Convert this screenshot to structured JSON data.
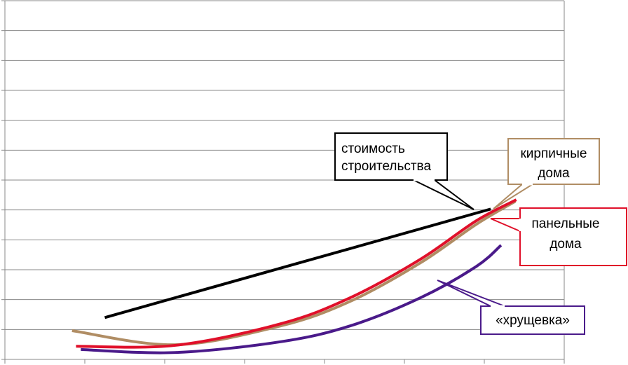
{
  "chart_data": {
    "type": "line",
    "xlim": [
      0,
      7
    ],
    "xticks": [
      0,
      1,
      2,
      3,
      4,
      5,
      6,
      7
    ],
    "ylim": [
      0,
      12
    ],
    "yticks": [
      0,
      1,
      2,
      3,
      4,
      5,
      6,
      7,
      8,
      9,
      10,
      11,
      12
    ],
    "grid": true,
    "series": [
      {
        "name": "стоимость строительства",
        "color": "#000000",
        "x": [
          1.25,
          6.08
        ],
        "values": [
          1.4,
          5.03
        ]
      },
      {
        "name": "кирпичные дома",
        "color": "#b08d64",
        "x": [
          0.84,
          2.13,
          3.45,
          4.32,
          5.2,
          5.9,
          6.39
        ],
        "values": [
          0.96,
          0.49,
          1.12,
          1.94,
          3.23,
          4.52,
          5.29
        ]
      },
      {
        "name": "панельные дома",
        "color": "#e0102a",
        "x": [
          0.89,
          2.13,
          3.45,
          4.32,
          5.2,
          5.9,
          6.4
        ],
        "values": [
          0.44,
          0.47,
          1.19,
          2.06,
          3.35,
          4.64,
          5.34
        ]
      },
      {
        "name": "«хрущевка»",
        "color": "#4a1a8a",
        "x": [
          0.95,
          2.13,
          3.45,
          4.32,
          5.2,
          5.9,
          6.21
        ],
        "values": [
          0.33,
          0.23,
          0.59,
          1.12,
          2.06,
          3.11,
          3.82
        ]
      }
    ],
    "annotations": [
      {
        "lines": [
          "стоимость",
          "строительства"
        ]
      },
      {
        "lines": [
          "кирпичные",
          "дома"
        ]
      },
      {
        "lines": [
          "панельные",
          "дома"
        ]
      },
      {
        "lines": [
          "«хрущевка»"
        ]
      }
    ]
  }
}
